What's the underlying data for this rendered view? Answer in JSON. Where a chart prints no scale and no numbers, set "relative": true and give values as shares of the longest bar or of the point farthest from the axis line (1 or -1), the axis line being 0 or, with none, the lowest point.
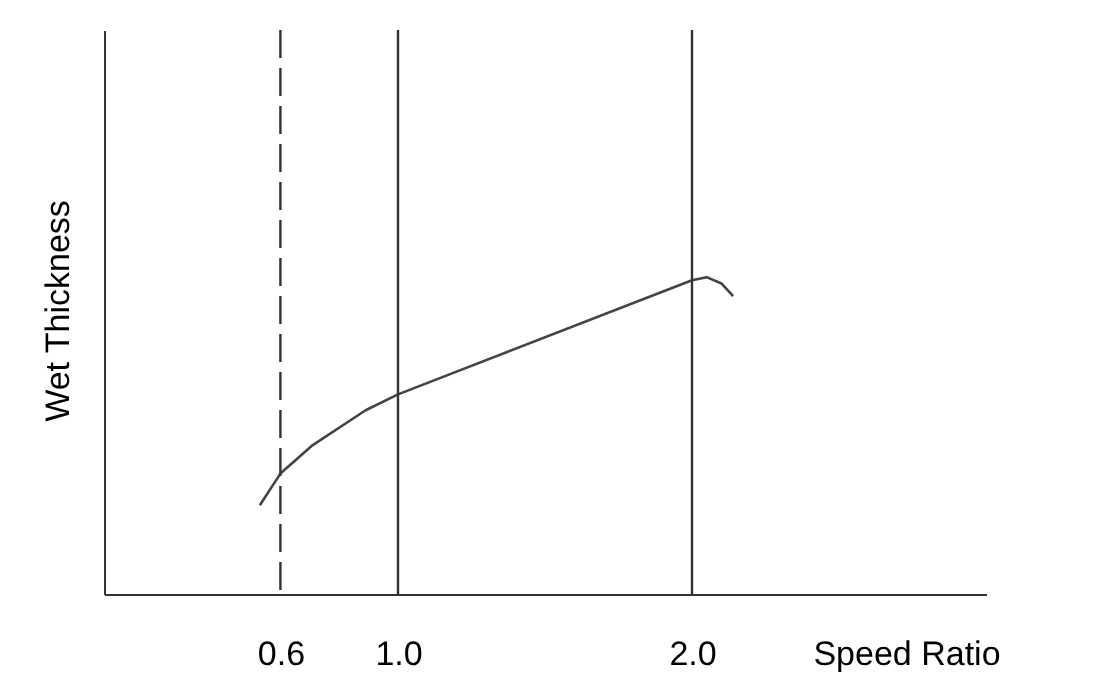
{
  "chart_data": {
    "type": "line",
    "xlabel": "Speed Ratio",
    "ylabel": "Wet Thickness",
    "relative": true,
    "xlim": [
      0,
      3
    ],
    "xticks": [
      0.6,
      {
        "value": 1,
        "label": "1.0"
      },
      {
        "value": 2,
        "label": "2.0"
      }
    ],
    "series": [
      {
        "color": "#444444",
        "x": [
          0.53,
          0.6,
          0.71,
          0.89,
          1.0,
          2.0,
          2.05,
          2.1,
          2.14
        ],
        "values": [
          0.28,
          0.38,
          0.47,
          0.58,
          0.63,
          0.99,
          1.0,
          0.98,
          0.94
        ]
      }
    ],
    "ref_lines": [
      {
        "axis": "x",
        "value": 0.6,
        "line_style": "dashed",
        "color": "#333333"
      },
      {
        "axis": "x",
        "value": 1,
        "line_style": "solid",
        "color": "#333333"
      },
      {
        "axis": "x",
        "value": 2,
        "line_style": "solid",
        "color": "#333333"
      }
    ],
    "grid": false,
    "marker": "none",
    "line_style": "solid"
  }
}
